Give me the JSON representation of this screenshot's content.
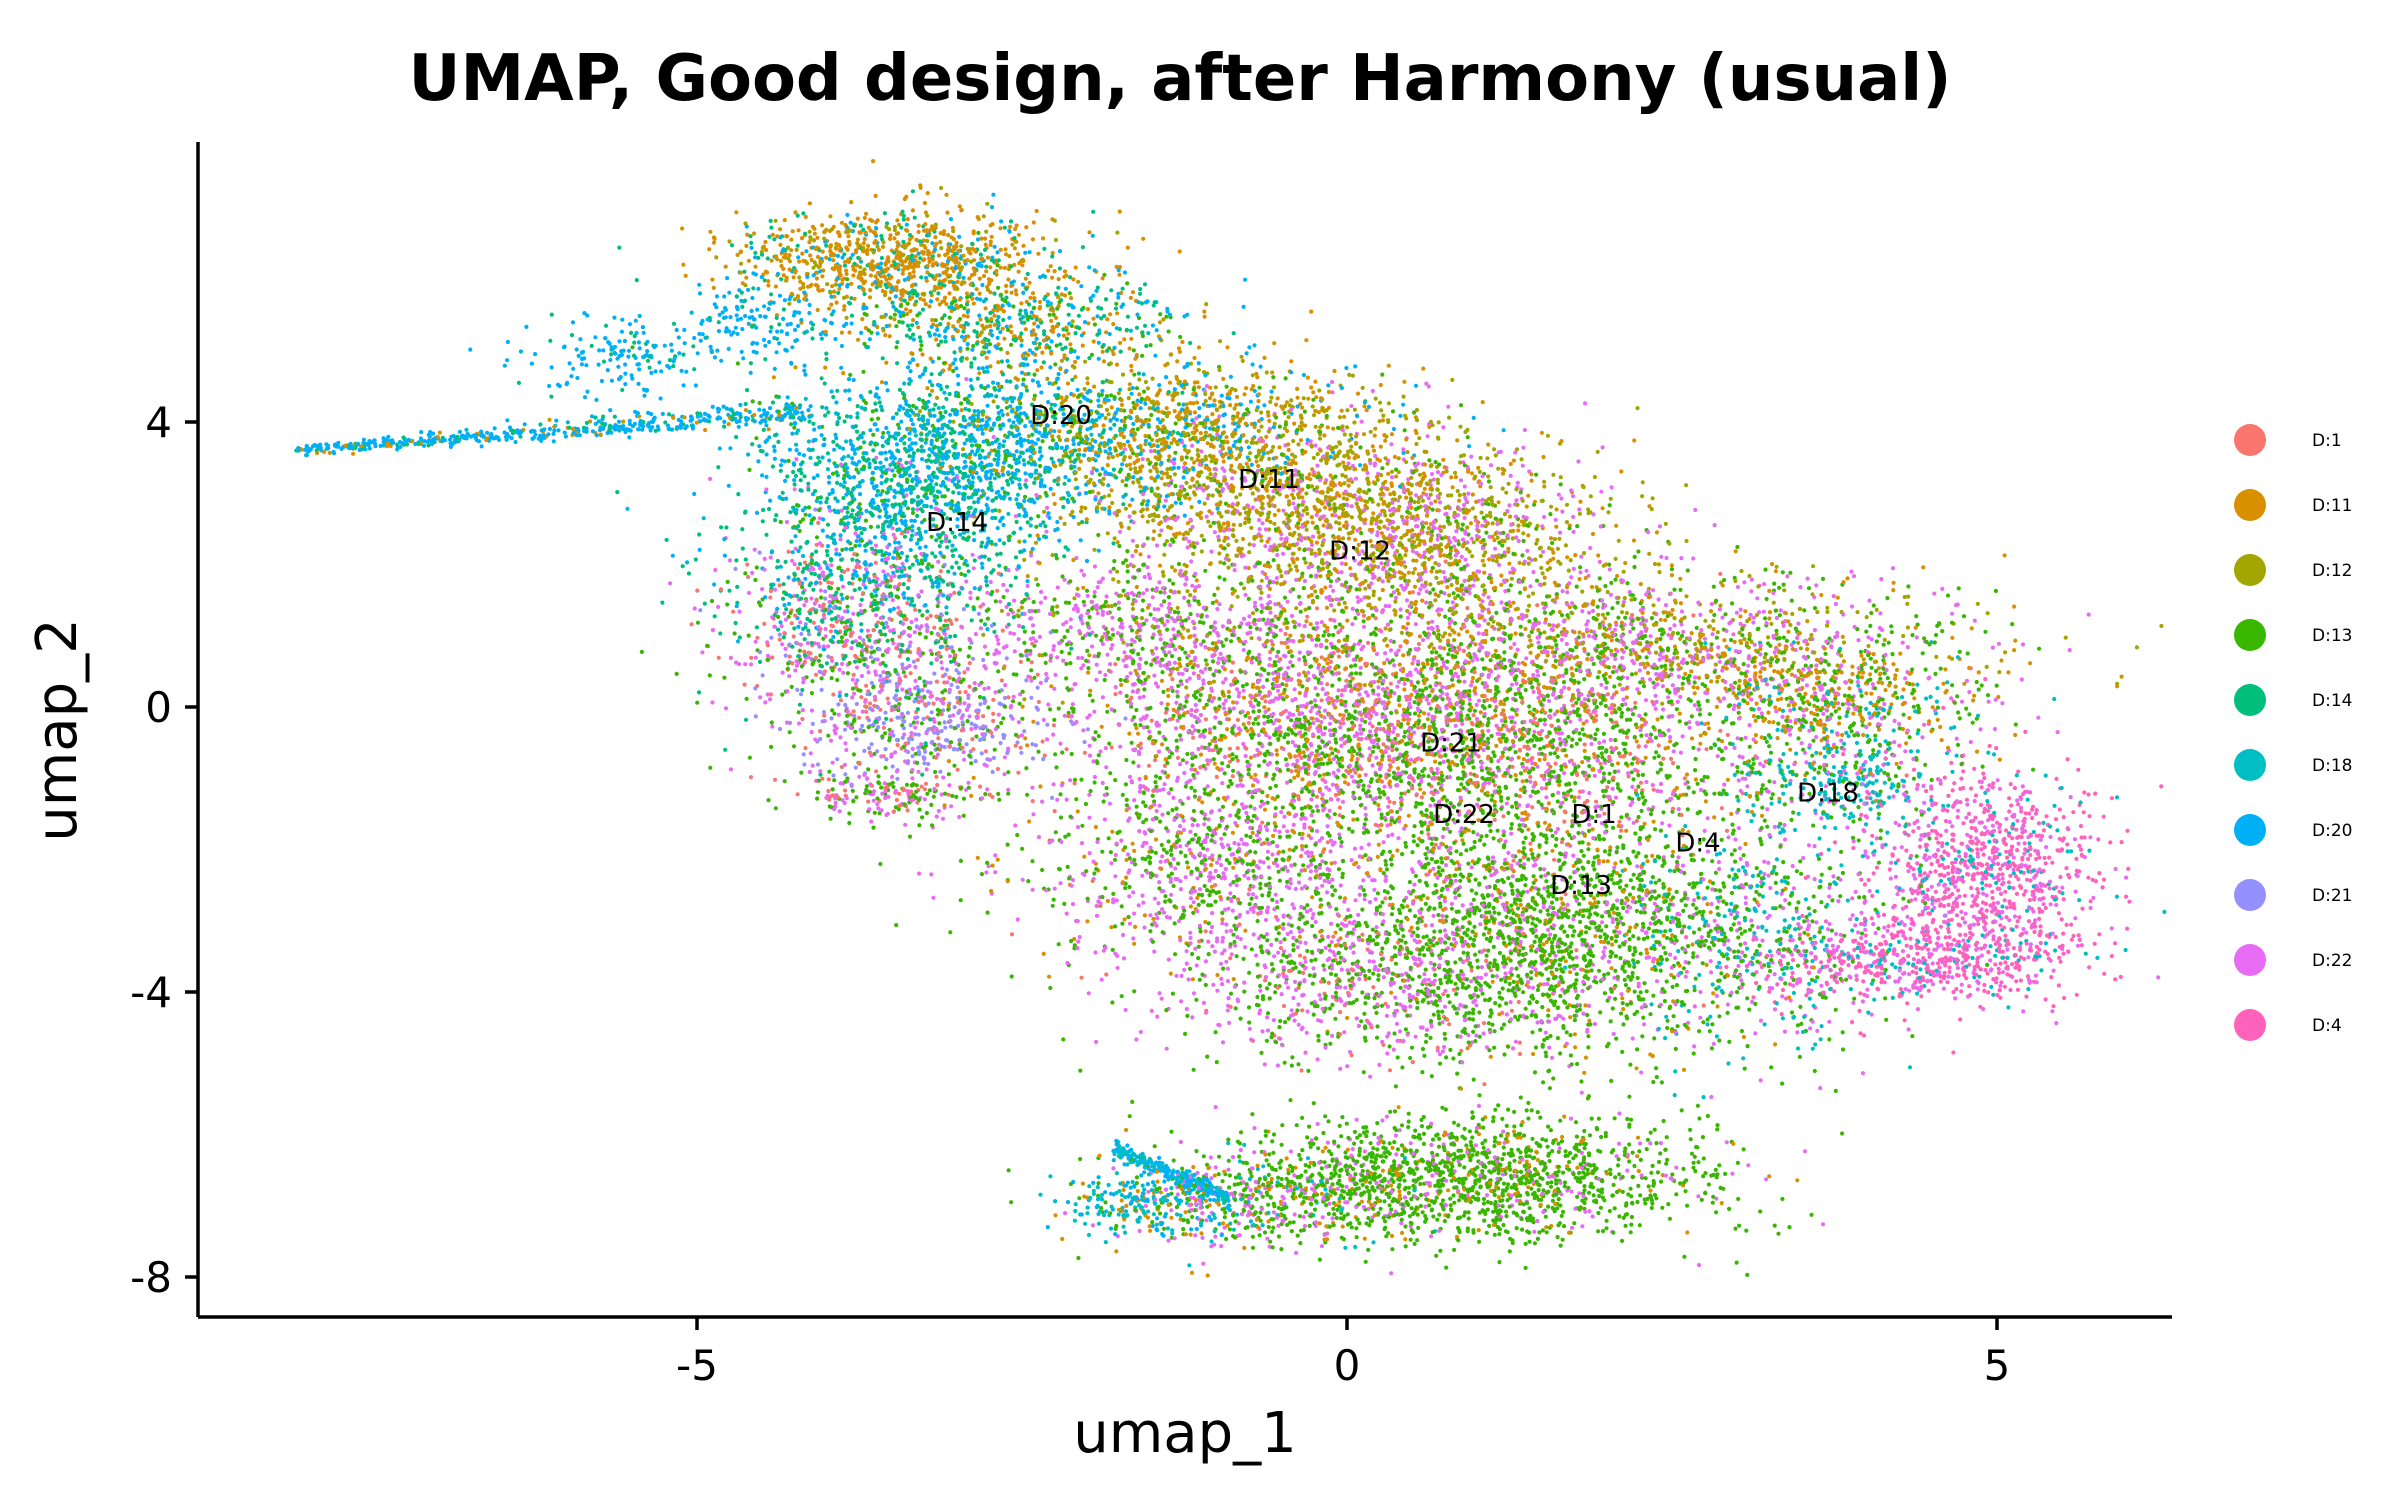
{
  "chart_data": {
    "type": "scatter",
    "title": "UMAP, Good design, after Harmony (usual)",
    "xlabel": "umap_1",
    "ylabel": "umap_2",
    "xlim": [
      -8.8,
      6.3
    ],
    "ylim": [
      -8.6,
      7.8
    ],
    "xticks": [
      -5,
      0,
      5
    ],
    "yticks": [
      4,
      0,
      -4,
      -8
    ],
    "grid": false,
    "legend_position": "right",
    "series": [
      {
        "name": "D:1",
        "color": "#F8766D"
      },
      {
        "name": "D:11",
        "color": "#D89000"
      },
      {
        "name": "D:12",
        "color": "#A3A500"
      },
      {
        "name": "D:13",
        "color": "#39B600"
      },
      {
        "name": "D:14",
        "color": "#00BF7D"
      },
      {
        "name": "D:18",
        "color": "#00BFC4"
      },
      {
        "name": "D:20",
        "color": "#00B0F6"
      },
      {
        "name": "D:21",
        "color": "#9590FF"
      },
      {
        "name": "D:22",
        "color": "#E76BF3"
      },
      {
        "name": "D:4",
        "color": "#FF62BC"
      }
    ],
    "cluster_labels": [
      {
        "text": "D:20",
        "x": -2.2,
        "y": 4.1
      },
      {
        "text": "D:11",
        "x": -0.6,
        "y": 3.2
      },
      {
        "text": "D:14",
        "x": -3.0,
        "y": 2.6
      },
      {
        "text": "D:12",
        "x": 0.1,
        "y": 2.2
      },
      {
        "text": "D:21",
        "x": 0.8,
        "y": -0.5
      },
      {
        "text": "D:22",
        "x": 0.9,
        "y": -1.5
      },
      {
        "text": "D:1",
        "x": 1.9,
        "y": -1.5
      },
      {
        "text": "D:18",
        "x": 3.7,
        "y": -1.2
      },
      {
        "text": "D:4",
        "x": 2.7,
        "y": -1.9
      },
      {
        "text": "D:13",
        "x": 1.8,
        "y": -2.5
      }
    ]
  }
}
